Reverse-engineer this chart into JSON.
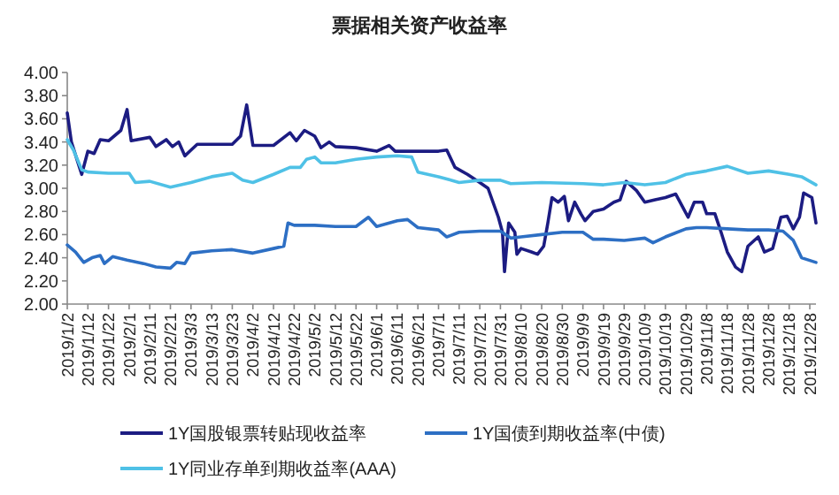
{
  "chart_data": {
    "type": "line",
    "title": "票据相关资产收益率",
    "legend": "bottom",
    "marker": "none",
    "line_style": "solid",
    "grid": false,
    "xlim": [
      "2019-01-02",
      "2019-12-31"
    ],
    "xticks": [
      {
        "value": "2019-01-02",
        "label": "2019/1/2"
      },
      {
        "value": "2019-01-12",
        "label": "2019/1/12"
      },
      {
        "value": "2019-01-22",
        "label": "2019/1/22"
      },
      {
        "value": "2019-02-01",
        "label": "2019/2/1"
      },
      {
        "value": "2019-02-11",
        "label": "2019/2/11"
      },
      {
        "value": "2019-02-21",
        "label": "2019/2/21"
      },
      {
        "value": "2019-03-03",
        "label": "2019/3/3"
      },
      {
        "value": "2019-03-13",
        "label": "2019/3/13"
      },
      {
        "value": "2019-03-23",
        "label": "2019/3/23"
      },
      {
        "value": "2019-04-02",
        "label": "2019/4/2"
      },
      {
        "value": "2019-04-12",
        "label": "2019/4/12"
      },
      {
        "value": "2019-04-22",
        "label": "2019/4/22"
      },
      {
        "value": "2019-05-02",
        "label": "2019/5/2"
      },
      {
        "value": "2019-05-12",
        "label": "2019/5/12"
      },
      {
        "value": "2019-05-22",
        "label": "2019/5/22"
      },
      {
        "value": "2019-06-01",
        "label": "2019/6/1"
      },
      {
        "value": "2019-06-11",
        "label": "2019/6/11"
      },
      {
        "value": "2019-06-21",
        "label": "2019/6/21"
      },
      {
        "value": "2019-07-01",
        "label": "2019/7/1"
      },
      {
        "value": "2019-07-11",
        "label": "2019/7/11"
      },
      {
        "value": "2019-07-21",
        "label": "2019/7/21"
      },
      {
        "value": "2019-07-31",
        "label": "2019/7/31"
      },
      {
        "value": "2019-08-10",
        "label": "2019/8/10"
      },
      {
        "value": "2019-08-20",
        "label": "2019/8/20"
      },
      {
        "value": "2019-08-30",
        "label": "2019/8/30"
      },
      {
        "value": "2019-09-09",
        "label": "2019/9/9"
      },
      {
        "value": "2019-09-19",
        "label": "2019/9/19"
      },
      {
        "value": "2019-09-29",
        "label": "2019/9/29"
      },
      {
        "value": "2019-10-09",
        "label": "2019/10/9"
      },
      {
        "value": "2019-10-19",
        "label": "2019/10/19"
      },
      {
        "value": "2019-10-29",
        "label": "2019/10/29"
      },
      {
        "value": "2019-11-08",
        "label": "2019/11/8"
      },
      {
        "value": "2019-11-18",
        "label": "2019/11/18"
      },
      {
        "value": "2019-11-28",
        "label": "2019/11/28"
      },
      {
        "value": "2019-12-08",
        "label": "2019/12/8"
      },
      {
        "value": "2019-12-18",
        "label": "2019/12/18"
      },
      {
        "value": "2019-12-28",
        "label": "2019/12/28"
      }
    ],
    "ylim": [
      2,
      4
    ],
    "yticks": [
      {
        "value": 2,
        "label": "2.00"
      },
      {
        "value": 2.2,
        "label": "2.20"
      },
      {
        "value": 2.4,
        "label": "2.40"
      },
      {
        "value": 2.6,
        "label": "2.60"
      },
      {
        "value": 2.8,
        "label": "2.80"
      },
      {
        "value": 3,
        "label": "3.00"
      },
      {
        "value": 3.2,
        "label": "3.20"
      },
      {
        "value": 3.4,
        "label": "3.40"
      },
      {
        "value": 3.6,
        "label": "3.60"
      },
      {
        "value": 3.8,
        "label": "3.80"
      },
      {
        "value": 4,
        "label": "4.00"
      }
    ],
    "series": [
      {
        "name": "1Y国股银票转贴现收益率",
        "color": "#1c1c82",
        "x": [
          "2019-01-02",
          "2019-01-04",
          "2019-01-09",
          "2019-01-12",
          "2019-01-15",
          "2019-01-18",
          "2019-01-22",
          "2019-01-28",
          "2019-01-31",
          "2019-02-02",
          "2019-02-11",
          "2019-02-14",
          "2019-02-19",
          "2019-02-22",
          "2019-02-25",
          "2019-02-28",
          "2019-03-03",
          "2019-03-06",
          "2019-03-13",
          "2019-03-23",
          "2019-03-27",
          "2019-03-30",
          "2019-04-02",
          "2019-04-12",
          "2019-04-20",
          "2019-04-23",
          "2019-04-27",
          "2019-05-02",
          "2019-05-05",
          "2019-05-09",
          "2019-05-12",
          "2019-05-22",
          "2019-06-01",
          "2019-06-07",
          "2019-06-10",
          "2019-06-21",
          "2019-07-01",
          "2019-07-05",
          "2019-07-09",
          "2019-07-15",
          "2019-07-21",
          "2019-07-25",
          "2019-07-30",
          "2019-08-01",
          "2019-08-02",
          "2019-08-04",
          "2019-08-07",
          "2019-08-08",
          "2019-08-10",
          "2019-08-15",
          "2019-08-18",
          "2019-08-21",
          "2019-08-23",
          "2019-08-25",
          "2019-08-28",
          "2019-08-31",
          "2019-09-02",
          "2019-09-05",
          "2019-09-08",
          "2019-09-10",
          "2019-09-14",
          "2019-09-19",
          "2019-09-24",
          "2019-09-27",
          "2019-09-30",
          "2019-10-05",
          "2019-10-09",
          "2019-10-14",
          "2019-10-19",
          "2019-10-24",
          "2019-10-27",
          "2019-10-30",
          "2019-11-02",
          "2019-11-06",
          "2019-11-08",
          "2019-11-12",
          "2019-11-15",
          "2019-11-18",
          "2019-11-22",
          "2019-11-25",
          "2019-11-28",
          "2019-12-03",
          "2019-12-06",
          "2019-12-10",
          "2019-12-14",
          "2019-12-17",
          "2019-12-20",
          "2019-12-23",
          "2019-12-25",
          "2019-12-29",
          "2019-12-31"
        ],
        "values": [
          3.65,
          3.4,
          3.12,
          3.32,
          3.3,
          3.42,
          3.41,
          3.5,
          3.68,
          3.41,
          3.44,
          3.36,
          3.42,
          3.36,
          3.4,
          3.28,
          3.33,
          3.38,
          3.38,
          3.38,
          3.45,
          3.72,
          3.37,
          3.37,
          3.48,
          3.41,
          3.5,
          3.45,
          3.35,
          3.4,
          3.36,
          3.35,
          3.32,
          3.37,
          3.32,
          3.32,
          3.32,
          3.33,
          3.18,
          3.12,
          3.05,
          3.0,
          2.75,
          2.62,
          2.28,
          2.7,
          2.62,
          2.43,
          2.48,
          2.45,
          2.43,
          2.5,
          2.7,
          2.92,
          2.88,
          2.93,
          2.72,
          2.88,
          2.78,
          2.72,
          2.8,
          2.82,
          2.88,
          2.9,
          3.06,
          2.98,
          2.88,
          2.9,
          2.92,
          2.95,
          2.85,
          2.75,
          2.88,
          2.88,
          2.78,
          2.78,
          2.62,
          2.45,
          2.32,
          2.28,
          2.5,
          2.58,
          2.45,
          2.48,
          2.75,
          2.76,
          2.65,
          2.75,
          2.96,
          2.92,
          2.7
        ]
      },
      {
        "name": "1Y国债到期收益率(中债)",
        "color": "#2d6fc4",
        "x": [
          "2019-01-02",
          "2019-01-06",
          "2019-01-10",
          "2019-01-14",
          "2019-01-18",
          "2019-01-20",
          "2019-01-24",
          "2019-01-31",
          "2019-02-08",
          "2019-02-14",
          "2019-02-21",
          "2019-02-24",
          "2019-02-28",
          "2019-03-03",
          "2019-03-13",
          "2019-03-23",
          "2019-04-02",
          "2019-04-12",
          "2019-04-17",
          "2019-04-19",
          "2019-04-22",
          "2019-05-02",
          "2019-05-12",
          "2019-05-22",
          "2019-05-28",
          "2019-06-01",
          "2019-06-11",
          "2019-06-16",
          "2019-06-21",
          "2019-07-01",
          "2019-07-05",
          "2019-07-11",
          "2019-07-21",
          "2019-07-31",
          "2019-08-05",
          "2019-08-10",
          "2019-08-20",
          "2019-08-30",
          "2019-09-09",
          "2019-09-14",
          "2019-09-19",
          "2019-09-29",
          "2019-10-09",
          "2019-10-13",
          "2019-10-19",
          "2019-10-29",
          "2019-11-03",
          "2019-11-08",
          "2019-11-18",
          "2019-11-28",
          "2019-12-08",
          "2019-12-15",
          "2019-12-20",
          "2019-12-24",
          "2019-12-31"
        ],
        "values": [
          2.51,
          2.45,
          2.36,
          2.4,
          2.42,
          2.35,
          2.41,
          2.38,
          2.35,
          2.32,
          2.31,
          2.36,
          2.35,
          2.44,
          2.46,
          2.47,
          2.44,
          2.48,
          2.5,
          2.7,
          2.68,
          2.68,
          2.67,
          2.67,
          2.75,
          2.67,
          2.72,
          2.73,
          2.66,
          2.64,
          2.58,
          2.62,
          2.63,
          2.63,
          2.57,
          2.58,
          2.6,
          2.62,
          2.62,
          2.56,
          2.56,
          2.55,
          2.57,
          2.53,
          2.58,
          2.65,
          2.66,
          2.66,
          2.65,
          2.64,
          2.64,
          2.63,
          2.55,
          2.4,
          2.36
        ]
      },
      {
        "name": "1Y同业存单到期收益率(AAA)",
        "color": "#4fc1e6",
        "x": [
          "2019-01-02",
          "2019-01-05",
          "2019-01-09",
          "2019-01-12",
          "2019-01-22",
          "2019-02-01",
          "2019-02-04",
          "2019-02-11",
          "2019-02-21",
          "2019-03-03",
          "2019-03-13",
          "2019-03-23",
          "2019-03-28",
          "2019-04-02",
          "2019-04-12",
          "2019-04-20",
          "2019-04-25",
          "2019-04-28",
          "2019-05-02",
          "2019-05-05",
          "2019-05-12",
          "2019-05-22",
          "2019-06-01",
          "2019-06-11",
          "2019-06-18",
          "2019-06-21",
          "2019-07-01",
          "2019-07-11",
          "2019-07-21",
          "2019-07-31",
          "2019-08-05",
          "2019-08-20",
          "2019-09-09",
          "2019-09-19",
          "2019-09-29",
          "2019-10-09",
          "2019-10-19",
          "2019-10-29",
          "2019-11-08",
          "2019-11-18",
          "2019-11-28",
          "2019-12-08",
          "2019-12-18",
          "2019-12-24",
          "2019-12-31"
        ],
        "values": [
          3.42,
          3.33,
          3.16,
          3.14,
          3.13,
          3.13,
          3.05,
          3.06,
          3.01,
          3.05,
          3.1,
          3.13,
          3.07,
          3.05,
          3.12,
          3.18,
          3.18,
          3.25,
          3.27,
          3.22,
          3.22,
          3.25,
          3.27,
          3.28,
          3.27,
          3.14,
          3.1,
          3.05,
          3.07,
          3.07,
          3.04,
          3.05,
          3.04,
          3.03,
          3.05,
          3.03,
          3.05,
          3.12,
          3.15,
          3.19,
          3.13,
          3.15,
          3.12,
          3.1,
          3.03
        ]
      }
    ]
  }
}
